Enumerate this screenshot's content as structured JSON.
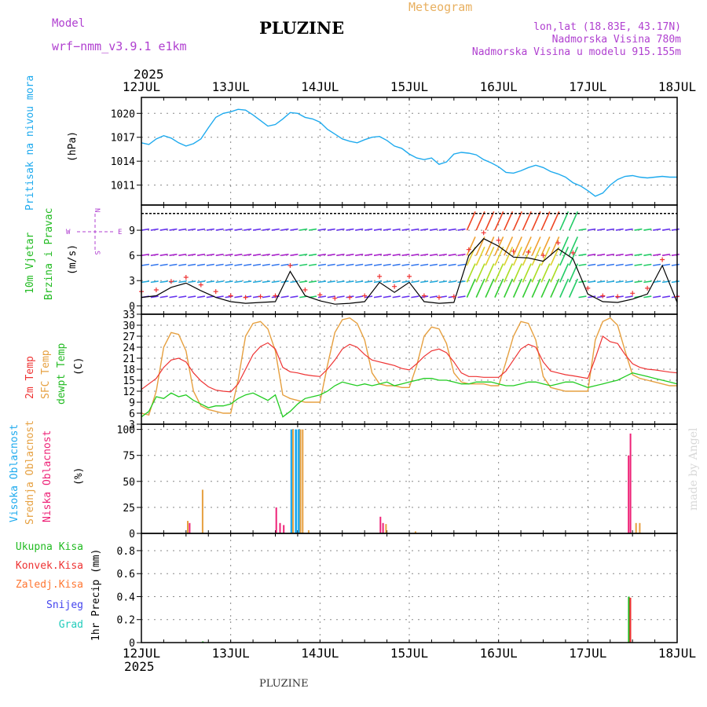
{
  "header": {
    "model_label": "Model",
    "model_name": "wrf−nmm_v3.9.1  e1km",
    "station": "PLUZINE",
    "product": "Meteogram",
    "lonlat": "lon,lat (18.83E, 43.17N)",
    "elevation": "Nadmorska Visina 780m",
    "model_elevation": "Nadmorska Visina u modelu 915.155m",
    "year_top": "2025",
    "year_bottom": "2025",
    "footer_station": "PLUZINE",
    "credit": "made by Angel"
  },
  "time_axis": {
    "labels": [
      "12JUL",
      "13JUL",
      "14JUL",
      "15JUL",
      "16JUL",
      "17JUL",
      "18JUL"
    ],
    "hours_total": 144
  },
  "panel_labels": {
    "pressure": {
      "title": "Pritisak na nivou mora",
      "unit": "(hPa)"
    },
    "wind": {
      "title1": "10m Vjetar",
      "title2": "Brzina i Pravac",
      "unit": "(m/s)",
      "compass": {
        "n": "N",
        "s": "S",
        "e": "E",
        "w": "W"
      }
    },
    "temp": {
      "t2m": "2m Temp",
      "sfc": "SFC Temp",
      "dew": "dewpt Temp",
      "unit": "(C)"
    },
    "cloud": {
      "high": "Visoka Oblacnost",
      "mid": "Srednja Oblacnost",
      "low": "Niska Oblacnost",
      "unit": "(%)"
    },
    "precip": {
      "total": "Ukupna Kisa",
      "conv": "Konvek.Kisa",
      "frz": "Zaledj.Kisa",
      "snow": "Snijeg",
      "hail": "Grad",
      "unit": "1hr Precip (mm)"
    }
  },
  "colors": {
    "pressure": "#1eaaee",
    "temp2m": "#ee3333",
    "sfc": "#e6a040",
    "dew": "#22cc22",
    "high_cloud": "#1eaaee",
    "mid_cloud": "#e6a040",
    "low_cloud": "#ee2277",
    "precip_total": "#22bb22",
    "precip_conv": "#ee3333",
    "precip_frz": "#ff7733",
    "snow": "#4444ee",
    "hail": "#22ccbb",
    "header_purple": "#b040d0",
    "header_orange": "#e8b060",
    "credit": "#d8d8d8"
  },
  "chart_data": [
    {
      "type": "line",
      "name": "pressure",
      "ylabel": "(hPa)",
      "ylim": [
        1008.5,
        1022
      ],
      "yticks": [
        1011,
        1014,
        1017,
        1020
      ],
      "x": [
        0,
        2,
        4,
        6,
        8,
        10,
        12,
        14,
        16,
        18,
        20,
        22,
        24,
        26,
        28,
        30,
        32,
        34,
        36,
        38,
        40,
        42,
        44,
        46,
        48,
        50,
        52,
        54,
        56,
        58,
        60,
        62,
        64,
        66,
        68,
        70,
        72,
        74,
        76,
        78,
        80,
        82,
        84,
        86,
        88,
        90,
        92,
        94,
        96,
        98,
        100,
        102,
        104,
        106,
        108,
        110,
        112,
        114,
        116,
        118,
        120,
        122,
        124,
        126,
        128,
        130,
        132,
        134,
        136,
        138,
        140,
        142,
        144
      ],
      "series": [
        {
          "values": [
            1016.3,
            1016.1,
            1016.8,
            1017.2,
            1016.9,
            1016.3,
            1015.9,
            1016.2,
            1016.8,
            1018.2,
            1019.5,
            1020.0,
            1020.2,
            1020.5,
            1020.4,
            1019.8,
            1019.1,
            1018.4,
            1018.6,
            1019.3,
            1020.1,
            1020.0,
            1019.5,
            1019.3,
            1018.9,
            1018.0,
            1017.4,
            1016.8,
            1016.5,
            1016.3,
            1016.7,
            1017.0,
            1017.1,
            1016.6,
            1015.9,
            1015.6,
            1014.9,
            1014.4,
            1014.2,
            1014.4,
            1013.6,
            1013.9,
            1014.9,
            1015.1,
            1015.0,
            1014.8,
            1014.2,
            1013.8,
            1013.3,
            1012.6,
            1012.5,
            1012.8,
            1013.2,
            1013.5,
            1013.2,
            1012.7,
            1012.4,
            1012.0,
            1011.3,
            1010.9,
            1010.3,
            1009.6,
            1010.0,
            1011.0,
            1011.7,
            1012.1,
            1012.2,
            1012.0,
            1011.9,
            1012.0,
            1012.1,
            1012.0,
            1012.0
          ]
        }
      ]
    },
    {
      "type": "line",
      "name": "wind_speed",
      "ylabel": "(m/s)",
      "ylim": [
        -1,
        12
      ],
      "yticks": [
        0,
        3,
        6,
        9
      ],
      "x": [
        0,
        4,
        8,
        12,
        16,
        20,
        24,
        28,
        32,
        36,
        40,
        44,
        48,
        52,
        56,
        60,
        64,
        68,
        72,
        76,
        80,
        84,
        88,
        92,
        96,
        100,
        104,
        108,
        112,
        116,
        120,
        124,
        128,
        132,
        136,
        140,
        144
      ],
      "series": [
        {
          "values": [
            1.0,
            1.2,
            2.2,
            2.7,
            1.8,
            1.0,
            0.5,
            0.3,
            0.4,
            0.5,
            4.1,
            1.2,
            0.6,
            0.2,
            0.3,
            0.5,
            2.8,
            1.6,
            2.8,
            0.5,
            0.3,
            0.4,
            6.0,
            8.0,
            7.1,
            5.8,
            5.7,
            5.3,
            6.8,
            5.6,
            1.4,
            0.5,
            0.4,
            0.8,
            1.4,
            4.8,
            0.4
          ]
        }
      ]
    },
    {
      "type": "line",
      "name": "temperature",
      "ylabel": "(C)",
      "ylim": [
        3,
        33
      ],
      "yticks": [
        3,
        6,
        9,
        12,
        15,
        18,
        21,
        24,
        27,
        30,
        33
      ],
      "x": [
        0,
        2,
        4,
        6,
        8,
        10,
        12,
        14,
        16,
        18,
        20,
        22,
        24,
        26,
        28,
        30,
        32,
        34,
        36,
        38,
        40,
        42,
        44,
        46,
        48,
        50,
        52,
        54,
        56,
        58,
        60,
        62,
        64,
        66,
        68,
        70,
        72,
        74,
        76,
        78,
        80,
        82,
        84,
        86,
        88,
        90,
        92,
        94,
        96,
        98,
        100,
        102,
        104,
        106,
        108,
        110,
        112,
        114,
        116,
        120,
        122,
        124,
        126,
        128,
        130,
        132,
        134,
        136,
        138,
        140,
        142,
        144
      ],
      "series": [
        {
          "values": [
            12.5,
            14.0,
            15.5,
            18.5,
            20.5,
            21.0,
            20.0,
            17.0,
            14.8,
            13.2,
            12.3,
            12.0,
            11.8,
            14.0,
            18.0,
            22.0,
            24.2,
            25.2,
            23.5,
            18.5,
            17.3,
            17.0,
            16.5,
            16.2,
            16.0,
            18.0,
            20.5,
            23.5,
            24.8,
            24.0,
            22.0,
            20.5,
            20.0,
            19.5,
            19.0,
            18.2,
            17.8,
            19.5,
            21.5,
            23.0,
            23.5,
            22.5,
            20.0,
            17.0,
            16.0,
            16.0,
            15.8,
            15.8,
            15.8,
            17.5,
            20.5,
            23.5,
            24.8,
            24.0,
            20.0,
            17.5,
            17.0,
            16.5,
            16.2,
            15.5,
            21.0,
            27.0,
            25.5,
            25.0,
            22.0,
            19.5,
            18.5,
            18.0,
            17.8,
            17.5,
            17.2,
            17.0
          ]
        },
        {
          "values": [
            6.0,
            5.5,
            12.0,
            24.0,
            28.0,
            27.5,
            23.0,
            12.0,
            8.0,
            7.0,
            6.5,
            6.0,
            6.0,
            15.0,
            27.0,
            30.5,
            31.0,
            29.0,
            23.0,
            11.0,
            10.0,
            9.5,
            9.0,
            9.0,
            9.0,
            19.0,
            28.0,
            31.5,
            32.0,
            30.5,
            26.0,
            17.0,
            14.0,
            13.5,
            13.5,
            13.0,
            13.0,
            19.0,
            27.0,
            29.5,
            29.0,
            25.0,
            17.0,
            14.5,
            14.0,
            14.0,
            14.0,
            13.5,
            13.5,
            20.0,
            27.0,
            31.0,
            30.5,
            26.0,
            16.0,
            13.0,
            12.5,
            12.0,
            12.0,
            12.0,
            26.0,
            31.0,
            32.0,
            30.0,
            23.0,
            16.5,
            15.5,
            15.0,
            14.5,
            14.0,
            13.5,
            13.5
          ]
        },
        {
          "values": [
            5.0,
            6.5,
            10.5,
            10.0,
            11.5,
            10.5,
            11.0,
            9.5,
            8.5,
            7.5,
            8.0,
            8.0,
            8.5,
            10.0,
            11.0,
            11.5,
            10.5,
            9.5,
            11.0,
            5.0,
            6.5,
            8.5,
            10.0,
            10.5,
            11.0,
            12.0,
            13.5,
            14.5,
            14.0,
            13.5,
            14.0,
            13.5,
            14.0,
            14.5,
            13.5,
            14.0,
            14.5,
            15.0,
            15.5,
            15.5,
            15.0,
            15.0,
            14.5,
            14.0,
            14.0,
            14.5,
            14.5,
            14.5,
            14.0,
            13.5,
            13.5,
            14.0,
            14.5,
            14.5,
            14.0,
            13.5,
            14.0,
            14.5,
            14.5,
            13.0,
            13.5,
            14.0,
            14.5,
            15.0,
            16.0,
            17.0,
            16.5,
            16.0,
            15.5,
            15.0,
            14.5,
            14.0
          ]
        }
      ]
    },
    {
      "type": "bar",
      "name": "cloud_cover",
      "ylabel": "(%)",
      "ylim": [
        0,
        105
      ],
      "yticks": [
        0,
        25,
        50,
        75,
        100
      ],
      "series": [
        {
          "name": "Visoka Oblacnost",
          "x": [
            40.3,
            41.5,
            42.3
          ],
          "values": [
            100,
            100,
            100
          ]
        },
        {
          "name": "Srednja Oblacnost",
          "x": [
            12.5,
            16.5,
            40.8,
            42.8,
            43.4,
            45.0,
            65.8,
            73.7,
            133.0,
            134.0
          ],
          "values": [
            12,
            42,
            100,
            100,
            100,
            3,
            9,
            2,
            10,
            10
          ]
        },
        {
          "name": "Niska Oblacnost",
          "x": [
            13.0,
            36.3,
            37.3,
            38.3,
            64.3,
            65.0,
            131.0,
            131.5
          ],
          "values": [
            10,
            25,
            10,
            8,
            16,
            10,
            75,
            96
          ]
        }
      ]
    },
    {
      "type": "bar",
      "name": "precipitation",
      "ylabel": "1hr Precip (mm)",
      "ylim": [
        0,
        0.95
      ],
      "yticks": [
        0,
        0.2,
        0.4,
        0.6,
        0.8
      ],
      "series": [
        {
          "name": "Ukupna Kisa",
          "x": [
            16.5,
            131.0
          ],
          "values": [
            0.01,
            0.4
          ]
        },
        {
          "name": "Konvek.Kisa",
          "x": [
            131.4
          ],
          "values": [
            0.39
          ]
        }
      ]
    }
  ]
}
